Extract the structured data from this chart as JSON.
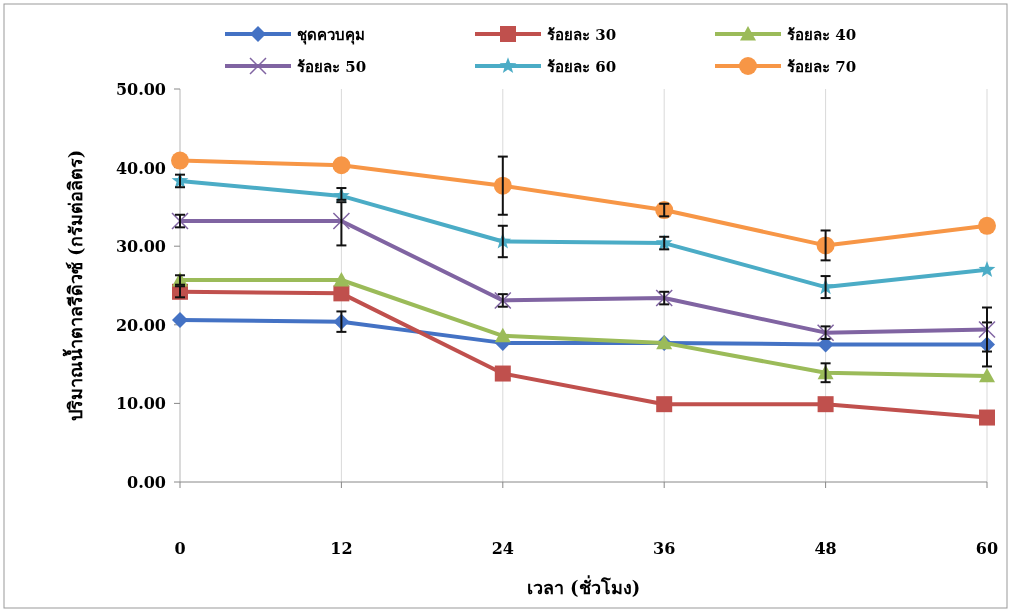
{
  "chart_data": {
    "type": "line",
    "xlabel": "เวลา (ชั่วโมง)",
    "ylabel": "ปริมาณน้ำตาลรีดิวซ์ (กรัมต่อลิตร)",
    "x": [
      0,
      12,
      24,
      36,
      48,
      60
    ],
    "xlim": [
      0,
      60
    ],
    "xticks": [
      0,
      12,
      24,
      36,
      48,
      60
    ],
    "ylim": [
      0,
      50
    ],
    "yticks": [
      {
        "value": 0,
        "label": "0.00"
      },
      {
        "value": 10,
        "label": "10.00"
      },
      {
        "value": 20,
        "label": "20.00"
      },
      {
        "value": 30,
        "label": "30.00"
      },
      {
        "value": 40,
        "label": "40.00"
      },
      {
        "value": 50,
        "label": "50.00"
      }
    ],
    "grid": "x",
    "legend": "top",
    "series": [
      {
        "name": "ชุดควบคุม",
        "color": "#4472c4",
        "marker": "diamond",
        "values": [
          20.6,
          20.4,
          17.7,
          17.7,
          17.5,
          17.5
        ],
        "errors": [
          null,
          1.3,
          null,
          null,
          null,
          2.8
        ]
      },
      {
        "name": "ร้อยละ 30",
        "color": "#c0504d",
        "marker": "square",
        "values": [
          24.2,
          24.0,
          13.8,
          9.9,
          9.9,
          8.2
        ],
        "errors": [
          0.7,
          null,
          null,
          null,
          null,
          null
        ]
      },
      {
        "name": "ร้อยละ 40",
        "color": "#9bbb59",
        "marker": "triangle",
        "values": [
          25.7,
          25.7,
          18.6,
          17.7,
          13.9,
          13.5
        ],
        "errors": [
          0.6,
          null,
          null,
          null,
          1.2,
          null
        ]
      },
      {
        "name": "ร้อยละ 50",
        "color": "#8064a2",
        "marker": "cross",
        "values": [
          33.2,
          33.2,
          23.1,
          23.4,
          19.0,
          19.4
        ],
        "errors": [
          0.8,
          [
            30.1,
            35.6
          ],
          0.8,
          0.8,
          0.8,
          2.8
        ]
      },
      {
        "name": "ร้อยละ 60",
        "color": "#4bacc6",
        "marker": "star",
        "values": [
          38.3,
          36.4,
          30.6,
          30.4,
          24.8,
          27.0
        ],
        "errors": [
          0.8,
          [
            35.9,
            37.4
          ],
          2.0,
          0.8,
          1.4,
          null
        ]
      },
      {
        "name": "ร้อยละ 70",
        "color": "#f79646",
        "marker": "circle",
        "values": [
          40.9,
          40.3,
          37.7,
          34.6,
          30.1,
          32.6
        ],
        "errors": [
          null,
          null,
          3.7,
          0.8,
          1.9,
          null
        ]
      }
    ]
  }
}
